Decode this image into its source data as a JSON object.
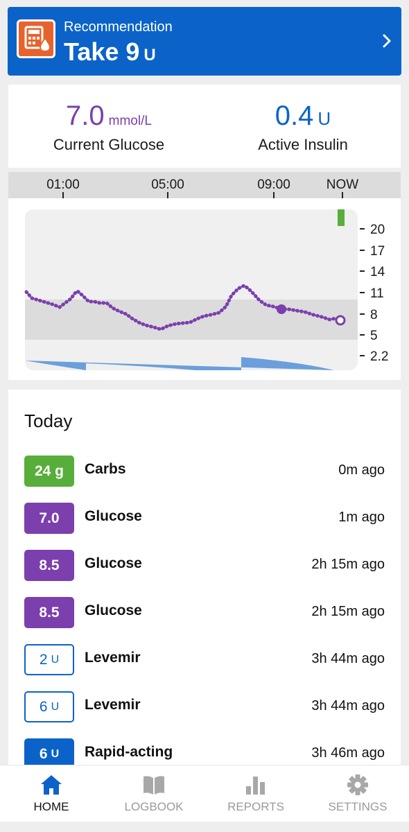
{
  "recommendation": {
    "label": "Recommendation",
    "value": "Take 9",
    "unit": "U"
  },
  "summary": {
    "glucose": {
      "value": "7.0",
      "unit": "mmol/L",
      "label": "Current Glucose"
    },
    "insulin": {
      "value": "0.4",
      "unit": "U",
      "label": "Active Insulin"
    }
  },
  "timeline": [
    "01:00",
    "05:00",
    "09:00",
    "NOW"
  ],
  "chart_data": {
    "type": "line",
    "yticks": [
      "20",
      "17",
      "14",
      "11",
      "8",
      "5",
      "2.2"
    ],
    "target_range": [
      4,
      10
    ],
    "colors": {
      "glucose": "#7b3fae",
      "insulin": "#6a9fdc",
      "carbs": "#58ae3a",
      "target_band": "#dcdcdc"
    }
  },
  "today": {
    "title": "Today",
    "entries": [
      {
        "badge": "24 g",
        "name": "Carbs",
        "time": "0m ago"
      },
      {
        "badge": "7.0",
        "name": "Glucose",
        "time": "1m ago"
      },
      {
        "badge": "8.5",
        "name": "Glucose",
        "time": "2h 15m ago"
      },
      {
        "badge": "8.5",
        "name": "Glucose",
        "time": "2h 15m ago"
      },
      {
        "badge": "2",
        "badge_unit": "U",
        "name": "Levemir",
        "time": "3h 44m ago"
      },
      {
        "badge": "6",
        "badge_unit": "U",
        "name": "Levemir",
        "time": "3h 44m ago"
      },
      {
        "badge": "6",
        "badge_unit": "U",
        "name": "Rapid-acting",
        "time": "3h 46m ago"
      }
    ]
  },
  "nav": {
    "home": "HOME",
    "logbook": "LOGBOOK",
    "reports": "REPORTS",
    "settings": "SETTINGS"
  },
  "colors": {
    "primary": "#0b63c9",
    "glucose": "#7b3fae",
    "carbs": "#58ae3a",
    "calculator": "#e8622c"
  }
}
